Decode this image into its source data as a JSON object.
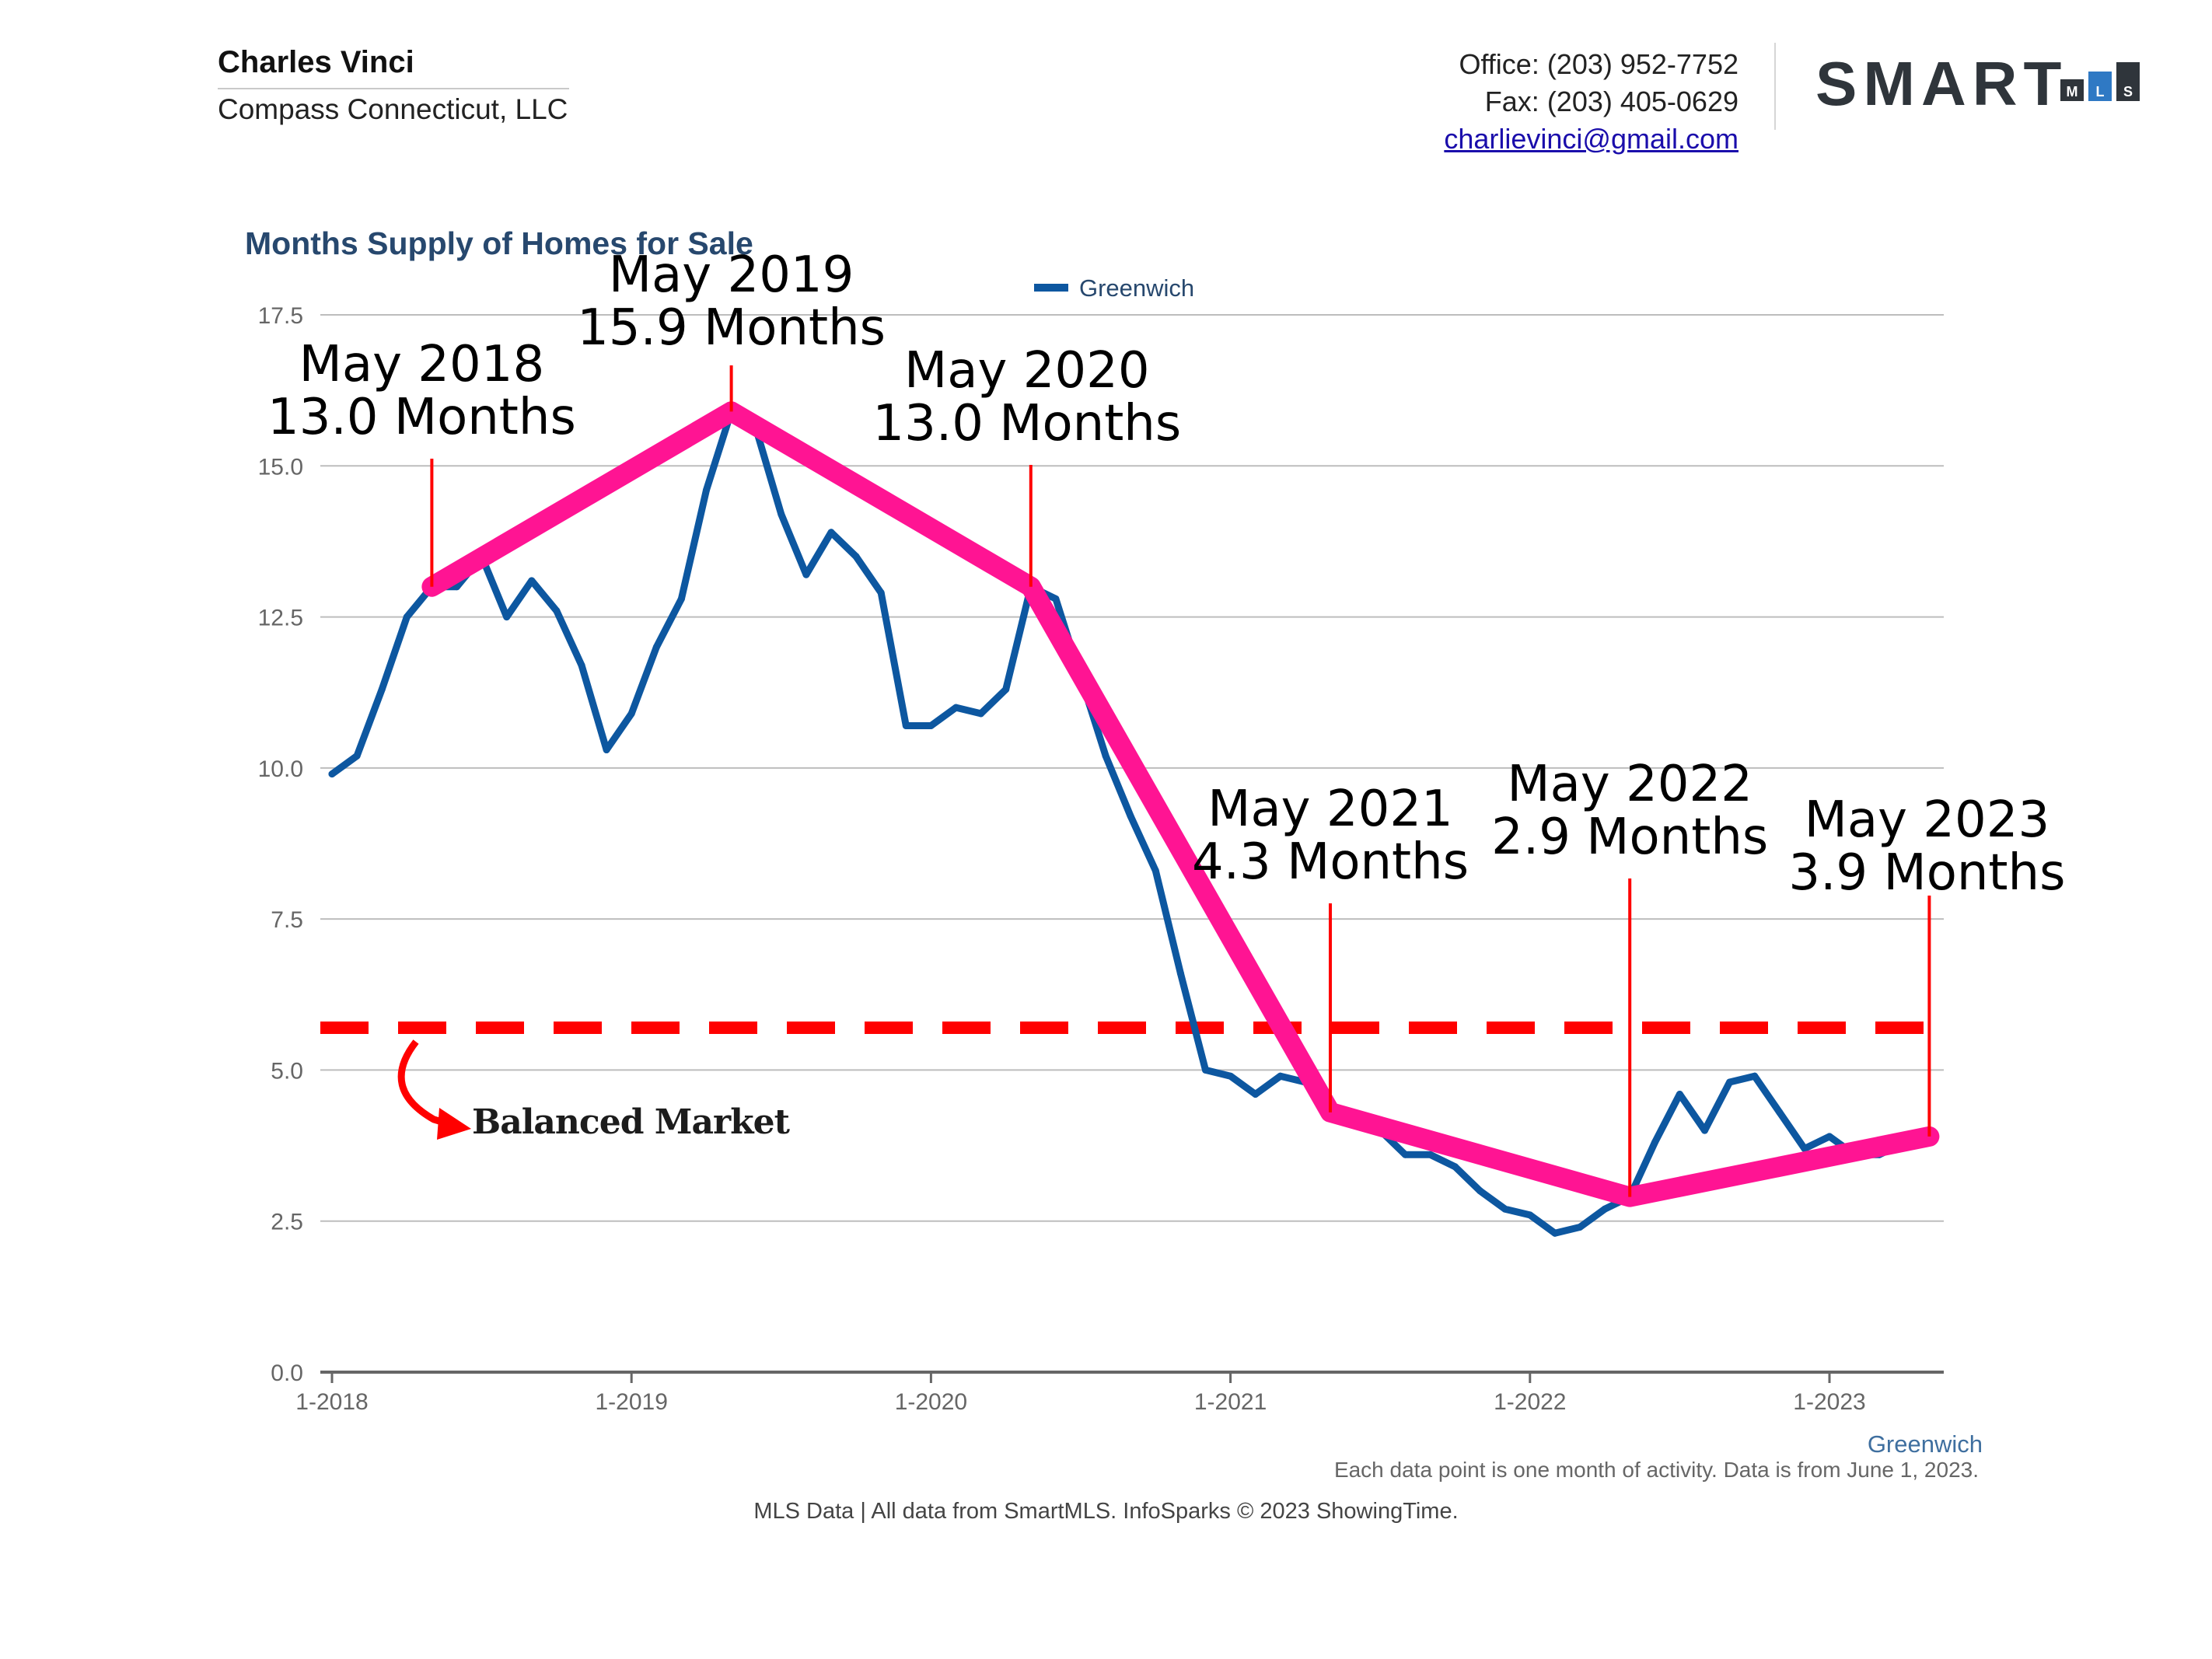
{
  "header": {
    "agent_name": "Charles Vinci",
    "agent_company": "Compass Connecticut, LLC",
    "office": "Office: (203) 952-7752",
    "fax": "Fax: (203) 405-0629",
    "email": "charlievinci@gmail.com",
    "logo_text": "SMART",
    "logo_sub": [
      "M",
      "L",
      "S"
    ]
  },
  "footer": {
    "note": "Each data point is one month of activity. Data is from June 1, 2023.",
    "source": "MLS Data | All data from SmartMLS. InfoSparks © 2023 ShowingTime."
  },
  "colors": {
    "series": "#0d57a0",
    "trend": "#ff1493",
    "balanced": "#ff0000",
    "title": "#27486e",
    "grid": "#bdbdbd",
    "axis": "#666666"
  },
  "chart_data": {
    "type": "line",
    "title": "Months Supply of Homes for Sale",
    "xlabel": "Greenwich",
    "ylabel": "",
    "ylim": [
      0,
      17.5
    ],
    "yticks": [
      0,
      2.5,
      5,
      7.5,
      10,
      12.5,
      15,
      17.5
    ],
    "ytick_labels": [
      "0.0",
      "2.5",
      "5.0",
      "7.5",
      "10.0",
      "12.5",
      "15.0",
      "17.5"
    ],
    "xtick_labels": [
      {
        "index": 0,
        "label": "1-2018"
      },
      {
        "index": 12,
        "label": "1-2019"
      },
      {
        "index": 24,
        "label": "1-2020"
      },
      {
        "index": 36,
        "label": "1-2021"
      },
      {
        "index": 48,
        "label": "1-2022"
      },
      {
        "index": 60,
        "label": "1-2023"
      }
    ],
    "legend": {
      "label": "Greenwich",
      "position": "top-center"
    },
    "series": [
      {
        "name": "Greenwich",
        "start": "2018-01",
        "values": [
          9.9,
          10.2,
          11.3,
          12.5,
          13.0,
          13.0,
          13.5,
          12.5,
          13.1,
          12.6,
          11.7,
          10.3,
          10.9,
          12.0,
          12.8,
          14.6,
          15.9,
          15.6,
          14.2,
          13.2,
          13.9,
          13.5,
          12.9,
          10.7,
          10.7,
          11.0,
          10.9,
          11.3,
          13.0,
          12.8,
          11.5,
          10.2,
          9.2,
          8.3,
          6.6,
          5.0,
          4.9,
          4.6,
          4.9,
          4.8,
          4.3,
          4.1,
          4.0,
          3.6,
          3.6,
          3.4,
          3.0,
          2.7,
          2.6,
          2.3,
          2.4,
          2.7,
          2.9,
          3.8,
          4.6,
          4.0,
          4.8,
          4.9,
          4.3,
          3.7,
          3.9,
          3.6,
          3.6,
          3.8,
          3.9
        ]
      }
    ],
    "trend_line": {
      "name": "May trend",
      "points": [
        {
          "index": 4,
          "value": 13.0
        },
        {
          "index": 16,
          "value": 15.9
        },
        {
          "index": 28,
          "value": 13.0
        },
        {
          "index": 40,
          "value": 4.3
        },
        {
          "index": 52,
          "value": 2.9
        },
        {
          "index": 64,
          "value": 3.9
        }
      ]
    },
    "balanced_market": {
      "value": 5.7,
      "label": "Balanced Market"
    },
    "annotations": [
      {
        "index": 4,
        "value": 13.0,
        "line1": "May 2018",
        "line2": "13.0 Months"
      },
      {
        "index": 16,
        "value": 15.9,
        "line1": "May 2019",
        "line2": "15.9 Months"
      },
      {
        "index": 28,
        "value": 13.0,
        "line1": "May 2020",
        "line2": "13.0 Months"
      },
      {
        "index": 40,
        "value": 4.3,
        "line1": "May 2021",
        "line2": "4.3 Months"
      },
      {
        "index": 52,
        "value": 2.9,
        "line1": "May 2022",
        "line2": "2.9 Months"
      },
      {
        "index": 64,
        "value": 3.9,
        "line1": "May 2023",
        "line2": "3.9 Months"
      }
    ]
  }
}
